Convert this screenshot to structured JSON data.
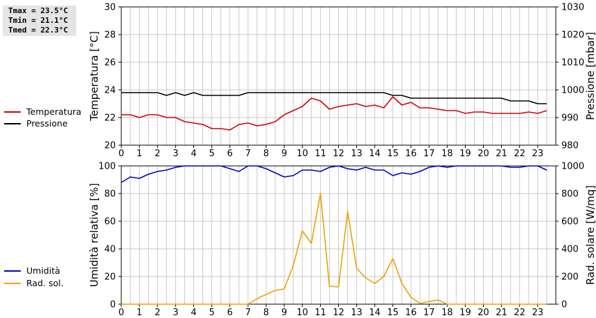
{
  "stats": {
    "tmax": "Tmax = 23.5°C",
    "tmin": "Tmin = 21.1°C",
    "tmed": "Tmed = 22.3°C"
  },
  "colors": {
    "temperature": "#d40000",
    "pressure": "#000000",
    "humidity": "#0000c0",
    "solar": "#f0a000",
    "grid": "#c8c8c8"
  },
  "chart_data": [
    {
      "type": "line",
      "x_ticks": [
        0,
        1,
        2,
        3,
        4,
        5,
        6,
        7,
        8,
        9,
        10,
        11,
        12,
        13,
        14,
        15,
        16,
        17,
        18,
        19,
        20,
        21,
        22,
        23
      ],
      "ylabel_left": "Temperatura [°C]",
      "ylabel_right": "Pressione [mbar]",
      "ylim_left": [
        20,
        30
      ],
      "yticks_left": [
        20,
        22,
        24,
        26,
        28,
        30
      ],
      "ylim_right": [
        980,
        1030
      ],
      "yticks_right": [
        980,
        990,
        1000,
        1010,
        1020,
        1030
      ],
      "grid": true,
      "legend": [
        "Temperatura",
        "Pressione"
      ],
      "series": [
        {
          "name": "Temperatura",
          "axis": "left",
          "x": [
            0,
            0.5,
            1,
            1.5,
            2,
            2.5,
            3,
            3.5,
            4,
            4.5,
            5,
            5.5,
            6,
            6.5,
            7,
            7.5,
            8,
            8.5,
            9,
            9.5,
            10,
            10.5,
            11,
            11.5,
            12,
            12.5,
            13,
            13.5,
            14,
            14.5,
            15,
            15.5,
            16,
            16.5,
            17,
            17.5,
            18,
            18.5,
            19,
            19.5,
            20,
            20.5,
            21,
            21.5,
            22,
            22.5,
            23,
            23.5
          ],
          "y": [
            22.2,
            22.2,
            22.0,
            22.2,
            22.2,
            22.0,
            22.0,
            21.7,
            21.6,
            21.5,
            21.2,
            21.2,
            21.1,
            21.5,
            21.6,
            21.4,
            21.5,
            21.7,
            22.2,
            22.5,
            22.8,
            23.4,
            23.2,
            22.6,
            22.8,
            22.9,
            23.0,
            22.8,
            22.9,
            22.7,
            23.5,
            22.9,
            23.1,
            22.7,
            22.7,
            22.6,
            22.5,
            22.5,
            22.3,
            22.4,
            22.4,
            22.3,
            22.3,
            22.3,
            22.3,
            22.4,
            22.3,
            22.5
          ]
        },
        {
          "name": "Pressione",
          "axis": "right",
          "x": [
            0,
            0.5,
            1,
            1.5,
            2,
            2.5,
            3,
            3.5,
            4,
            4.5,
            5,
            5.5,
            6,
            6.5,
            7,
            7.5,
            8,
            8.5,
            9,
            9.5,
            10,
            10.5,
            11,
            11.5,
            12,
            12.5,
            13,
            13.5,
            14,
            14.5,
            15,
            15.5,
            16,
            16.5,
            17,
            17.5,
            18,
            18.5,
            19,
            19.5,
            20,
            20.5,
            21,
            21.5,
            22,
            22.5,
            23,
            23.5
          ],
          "y": [
            999,
            999,
            999,
            999,
            999,
            998,
            999,
            998,
            999,
            998,
            998,
            998,
            998,
            998,
            999,
            999,
            999,
            999,
            999,
            999,
            999,
            999,
            999,
            999,
            999,
            999,
            999,
            999,
            999,
            999,
            998,
            998,
            997,
            997,
            997,
            997,
            997,
            997,
            997,
            997,
            997,
            997,
            997,
            996,
            996,
            996,
            995,
            995
          ]
        }
      ]
    },
    {
      "type": "line",
      "x_ticks": [
        0,
        1,
        2,
        3,
        4,
        5,
        6,
        7,
        8,
        9,
        10,
        11,
        12,
        13,
        14,
        15,
        16,
        17,
        18,
        19,
        20,
        21,
        22,
        23
      ],
      "ylabel_left": "Umidità relativa [%]",
      "ylabel_right": "Rad. solare [W/mq]",
      "ylim_left": [
        0,
        100
      ],
      "yticks_left": [
        0,
        20,
        40,
        60,
        80,
        100
      ],
      "ylim_right": [
        0,
        1000
      ],
      "yticks_right": [
        0,
        200,
        400,
        600,
        800,
        1000
      ],
      "grid": true,
      "legend": [
        "Umidità",
        "Rad. sol."
      ],
      "series": [
        {
          "name": "Umidità",
          "axis": "left",
          "x": [
            0,
            0.5,
            1,
            1.5,
            2,
            2.5,
            3,
            3.5,
            4,
            4.5,
            5,
            5.5,
            6,
            6.5,
            7,
            7.5,
            8,
            8.5,
            9,
            9.5,
            10,
            10.5,
            11,
            11.5,
            12,
            12.5,
            13,
            13.5,
            14,
            14.5,
            15,
            15.5,
            16,
            16.5,
            17,
            17.5,
            18,
            18.5,
            19,
            19.5,
            20,
            20.5,
            21,
            21.5,
            22,
            22.5,
            23,
            23.5
          ],
          "y": [
            88,
            92,
            91,
            94,
            96,
            97,
            99,
            100,
            100,
            100,
            100,
            100,
            98,
            96,
            100,
            100,
            98,
            95,
            92,
            93,
            97,
            97,
            96,
            99,
            100,
            98,
            97,
            99,
            97,
            97,
            93,
            95,
            94,
            96,
            99,
            100,
            99,
            100,
            100,
            100,
            100,
            100,
            100,
            99,
            99,
            100,
            100,
            97
          ]
        },
        {
          "name": "Rad. sol.",
          "axis": "right",
          "x": [
            0,
            0.5,
            1,
            1.5,
            2,
            2.5,
            3,
            3.5,
            4,
            4.5,
            5,
            5.5,
            6,
            6.5,
            7,
            7.5,
            8,
            8.5,
            9,
            9.5,
            10,
            10.5,
            11,
            11.5,
            12,
            12.5,
            13,
            13.5,
            14,
            14.5,
            15,
            15.5,
            16,
            16.5,
            17,
            17.5,
            18,
            18.5,
            19,
            19.5,
            20,
            20.5,
            21,
            21.5,
            22,
            22.5,
            23,
            23.5
          ],
          "y": [
            0,
            0,
            0,
            0,
            0,
            0,
            0,
            0,
            0,
            0,
            0,
            0,
            0,
            0,
            0,
            40,
            70,
            100,
            110,
            280,
            530,
            440,
            800,
            130,
            125,
            670,
            260,
            190,
            150,
            200,
            330,
            150,
            50,
            5,
            20,
            30,
            0,
            0,
            0,
            0,
            0,
            0,
            0,
            0,
            0,
            0,
            0,
            0
          ]
        }
      ]
    }
  ]
}
